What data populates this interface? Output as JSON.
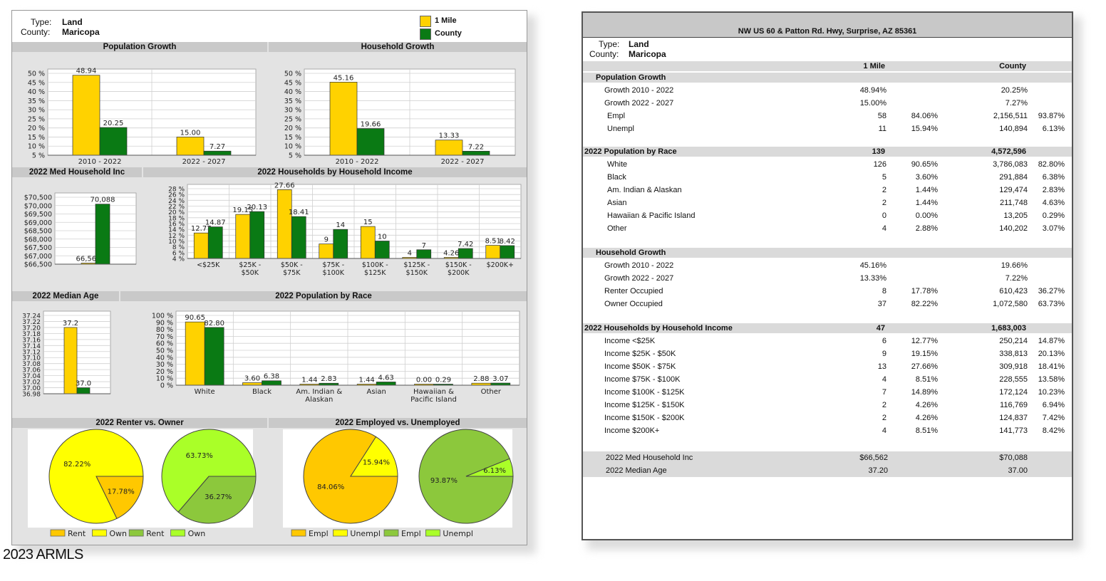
{
  "left": {
    "header": {
      "type_label": "Type:",
      "type_value": "Land",
      "county_label": "County:",
      "county_value": "Maricopa"
    },
    "legend": [
      {
        "label": "1 Mile",
        "color": "#ffd200"
      },
      {
        "label": "County",
        "color": "#0a7a14"
      }
    ],
    "titles": {
      "pop_growth": "Population Growth",
      "hh_growth": "Household Growth",
      "med_income": "2022 Med Household Inc",
      "hh_income": "2022 Households by Household Income",
      "med_age": "2022 Median Age",
      "pop_race": "2022 Population by Race",
      "renter_owner": "2022 Renter vs. Owner",
      "employed": "2022 Employed vs. Unemployed"
    },
    "pie_legends": {
      "renter": [
        "Rent",
        "Own",
        "Rent",
        "Own"
      ],
      "employed": [
        "Empl",
        "Unempl",
        "Empl",
        "Unempl"
      ]
    }
  },
  "chart_data": [
    {
      "id": "pop_growth",
      "type": "bar",
      "title": "Population Growth",
      "categories": [
        "2010 - 2022",
        "2022 - 2027"
      ],
      "series": [
        {
          "name": "1 Mile",
          "values": [
            48.94,
            15.0
          ]
        },
        {
          "name": "County",
          "values": [
            20.25,
            7.27
          ]
        }
      ],
      "value_labels": [
        [
          "48.94",
          "15.00"
        ],
        [
          "20.25",
          "7.27"
        ]
      ],
      "yticks": [
        "50 %",
        "45 %",
        "40 %",
        "35 %",
        "30 %",
        "25 %",
        "20 %",
        "15 %",
        "10 %",
        "5 %"
      ],
      "ylim": [
        5,
        50
      ]
    },
    {
      "id": "hh_growth",
      "type": "bar",
      "title": "Household Growth",
      "categories": [
        "2010 - 2022",
        "2022 - 2027"
      ],
      "series": [
        {
          "name": "1 Mile",
          "values": [
            45.16,
            13.33
          ]
        },
        {
          "name": "County",
          "values": [
            19.66,
            7.22
          ]
        }
      ],
      "value_labels": [
        [
          "45.16",
          "13.33"
        ],
        [
          "19.66",
          "7.22"
        ]
      ],
      "yticks": [
        "50 %",
        "45 %",
        "40 %",
        "35 %",
        "30 %",
        "25 %",
        "20 %",
        "15 %",
        "10 %",
        "5 %"
      ],
      "ylim": [
        5,
        50
      ]
    },
    {
      "id": "med_income",
      "type": "bar",
      "title": "2022 Med Household Inc",
      "categories": [
        ""
      ],
      "series": [
        {
          "name": "1 Mile",
          "values": [
            66562
          ]
        },
        {
          "name": "County",
          "values": [
            70088
          ]
        }
      ],
      "value_labels": [
        [
          "66,562"
        ],
        [
          "70,088"
        ]
      ],
      "yticks": [
        "$70,500",
        "$70,000",
        "$69,500",
        "$69,000",
        "$68,500",
        "$68,000",
        "$67,500",
        "$67,000",
        "$66,500"
      ],
      "ylim": [
        66500,
        70500
      ]
    },
    {
      "id": "hh_income",
      "type": "bar",
      "title": "2022 Households by Household Income",
      "categories": [
        "<$25K",
        "$25K -\n$50K",
        "$50K -\n$75K",
        "$75K -\n$100K",
        "$100K -\n$125K",
        "$125K -\n$150K",
        "$150K -\n$200K",
        "$200K+"
      ],
      "series": [
        {
          "name": "1 Mile",
          "values": [
            12.77,
            19.15,
            27.66,
            9,
            15,
            4,
            4.26,
            8.51
          ]
        },
        {
          "name": "County",
          "values": [
            14.87,
            20.13,
            18.41,
            14,
            10,
            7,
            7.42,
            8.42
          ]
        }
      ],
      "value_labels": [
        [
          "12.77",
          "19.15",
          "27.66",
          "9",
          "15",
          "4",
          "4.26",
          "8.51"
        ],
        [
          "14.87",
          "20.13",
          "18.41",
          "14",
          "10",
          "7",
          "7.42",
          "8.42"
        ]
      ],
      "yticks": [
        "28 %",
        "26 %",
        "24 %",
        "22 %",
        "20 %",
        "18 %",
        "16 %",
        "14 %",
        "12 %",
        "10 %",
        "8 %",
        "6 %",
        "4 %"
      ],
      "ylim": [
        4,
        28
      ]
    },
    {
      "id": "med_age",
      "type": "bar",
      "title": "2022 Median Age",
      "categories": [
        ""
      ],
      "series": [
        {
          "name": "1 Mile",
          "values": [
            37.2
          ]
        },
        {
          "name": "County",
          "values": [
            37.0
          ]
        }
      ],
      "value_labels": [
        [
          "37.2"
        ],
        [
          "37.0"
        ]
      ],
      "yticks": [
        "37.24",
        "37.22",
        "37.20",
        "37.18",
        "37.16",
        "37.14",
        "37.12",
        "37.10",
        "37.08",
        "37.06",
        "37.04",
        "37.02",
        "37.00",
        "36.98"
      ],
      "ylim": [
        36.98,
        37.24
      ]
    },
    {
      "id": "pop_race",
      "type": "bar",
      "title": "2022 Population by Race",
      "categories": [
        "White",
        "Black",
        "Am. Indian &\nAlaskan",
        "Asian",
        "Hawaiian &\nPacific Island",
        "Other"
      ],
      "series": [
        {
          "name": "1 Mile",
          "values": [
            90.65,
            3.6,
            1.44,
            1.44,
            0.0,
            2.88
          ]
        },
        {
          "name": "County",
          "values": [
            82.8,
            6.38,
            2.83,
            4.63,
            0.29,
            3.07
          ]
        }
      ],
      "value_labels": [
        [
          "90.65",
          "3.60",
          "1.44",
          "1.44",
          "0.00",
          "2.88"
        ],
        [
          "82.80",
          "6.38",
          "2.83",
          "4.63",
          "0.29",
          "3.07"
        ]
      ],
      "yticks": [
        "100 %",
        "90 %",
        "80 %",
        "70 %",
        "60 %",
        "50 %",
        "40 %",
        "30 %",
        "20 %",
        "10 %",
        "0 %"
      ],
      "ylim": [
        0,
        100
      ]
    },
    {
      "id": "renter_1mile",
      "type": "pie",
      "labels": [
        "Rent",
        "Own"
      ],
      "values": [
        17.78,
        82.22
      ],
      "value_labels": [
        "17.78%",
        "82.22%"
      ],
      "colors": [
        "#ffc800",
        "#ffff00"
      ]
    },
    {
      "id": "renter_county",
      "type": "pie",
      "labels": [
        "Rent",
        "Own"
      ],
      "values": [
        36.27,
        63.73
      ],
      "value_labels": [
        "36.27%",
        "63.73%"
      ],
      "colors": [
        "#8cc83c",
        "#aaff28"
      ]
    },
    {
      "id": "empl_1mile",
      "type": "pie",
      "labels": [
        "Empl",
        "Unempl"
      ],
      "values": [
        84.06,
        15.94
      ],
      "value_labels": [
        "84.06%",
        "15.94%"
      ],
      "colors": [
        "#ffc800",
        "#ffff00"
      ]
    },
    {
      "id": "empl_county",
      "type": "pie",
      "labels": [
        "Empl",
        "Unempl"
      ],
      "values": [
        93.87,
        6.13
      ],
      "value_labels": [
        "93.87%",
        "6.13%"
      ],
      "colors": [
        "#8cc83c",
        "#aaff28"
      ]
    }
  ],
  "right": {
    "title": "NW US 60 & Patton Rd. Hwy, Surprise, AZ 85361",
    "type_label": "Type:",
    "type_value": "Land",
    "county_label": "County:",
    "county_value": "Maricopa",
    "col_1mile": "1 Mile",
    "col_county": "County",
    "sections": [
      {
        "title": "Population Growth",
        "total_1": "",
        "total_c": "",
        "rows": [
          [
            "Growth 2010 - 2022",
            "48.94%",
            "",
            "20.25%",
            ""
          ],
          [
            "Growth 2022 - 2027",
            "15.00%",
            "",
            "7.27%",
            ""
          ],
          [
            "Empl",
            "58",
            "84.06%",
            "2,156,511",
            "93.87%"
          ],
          [
            "Unempl",
            "11",
            "15.94%",
            "140,894",
            "6.13%"
          ]
        ]
      },
      {
        "title": "2022 Population by Race",
        "total_1": "139",
        "total_c": "4,572,596",
        "rows": [
          [
            "White",
            "126",
            "90.65%",
            "3,786,083",
            "82.80%"
          ],
          [
            "Black",
            "5",
            "3.60%",
            "291,884",
            "6.38%"
          ],
          [
            "Am. Indian & Alaskan",
            "2",
            "1.44%",
            "129,474",
            "2.83%"
          ],
          [
            "Asian",
            "2",
            "1.44%",
            "211,748",
            "4.63%"
          ],
          [
            "Hawaiian & Pacific Island",
            "0",
            "0.00%",
            "13,205",
            "0.29%"
          ],
          [
            "Other",
            "4",
            "2.88%",
            "140,202",
            "3.07%"
          ]
        ]
      },
      {
        "title": "Household Growth",
        "total_1": "",
        "total_c": "",
        "rows": [
          [
            "Growth 2010 - 2022",
            "45.16%",
            "",
            "19.66%",
            ""
          ],
          [
            "Growth 2022 - 2027",
            "13.33%",
            "",
            "7.22%",
            ""
          ],
          [
            "Renter Occupied",
            "8",
            "17.78%",
            "610,423",
            "36.27%"
          ],
          [
            "Owner Occupied",
            "37",
            "82.22%",
            "1,072,580",
            "63.73%"
          ]
        ]
      },
      {
        "title": "2022 Households by Household Income",
        "total_1": "47",
        "total_c": "1,683,003",
        "rows": [
          [
            "Income <$25K",
            "6",
            "12.77%",
            "250,214",
            "14.87%"
          ],
          [
            "Income $25K -  $50K",
            "9",
            "19.15%",
            "338,813",
            "20.13%"
          ],
          [
            "Income $50K -  $75K",
            "13",
            "27.66%",
            "309,918",
            "18.41%"
          ],
          [
            "Income $75K -  $100K",
            "4",
            "8.51%",
            "228,555",
            "13.58%"
          ],
          [
            "Income $100K -  $125K",
            "7",
            "14.89%",
            "172,124",
            "10.23%"
          ],
          [
            "Income $125K -  $150K",
            "2",
            "4.26%",
            "116,769",
            "6.94%"
          ],
          [
            "Income $150K  -  $200K",
            "2",
            "4.26%",
            "124,837",
            "7.42%"
          ],
          [
            "Income $200K+",
            "4",
            "8.51%",
            "141,773",
            "8.42%"
          ]
        ]
      }
    ],
    "footer": [
      [
        "2022 Med Household Inc",
        "$66,562",
        "$70,088"
      ],
      [
        "2022 Median Age",
        "37.20",
        "37.00"
      ]
    ]
  },
  "copyright": "2023 ARMLS"
}
